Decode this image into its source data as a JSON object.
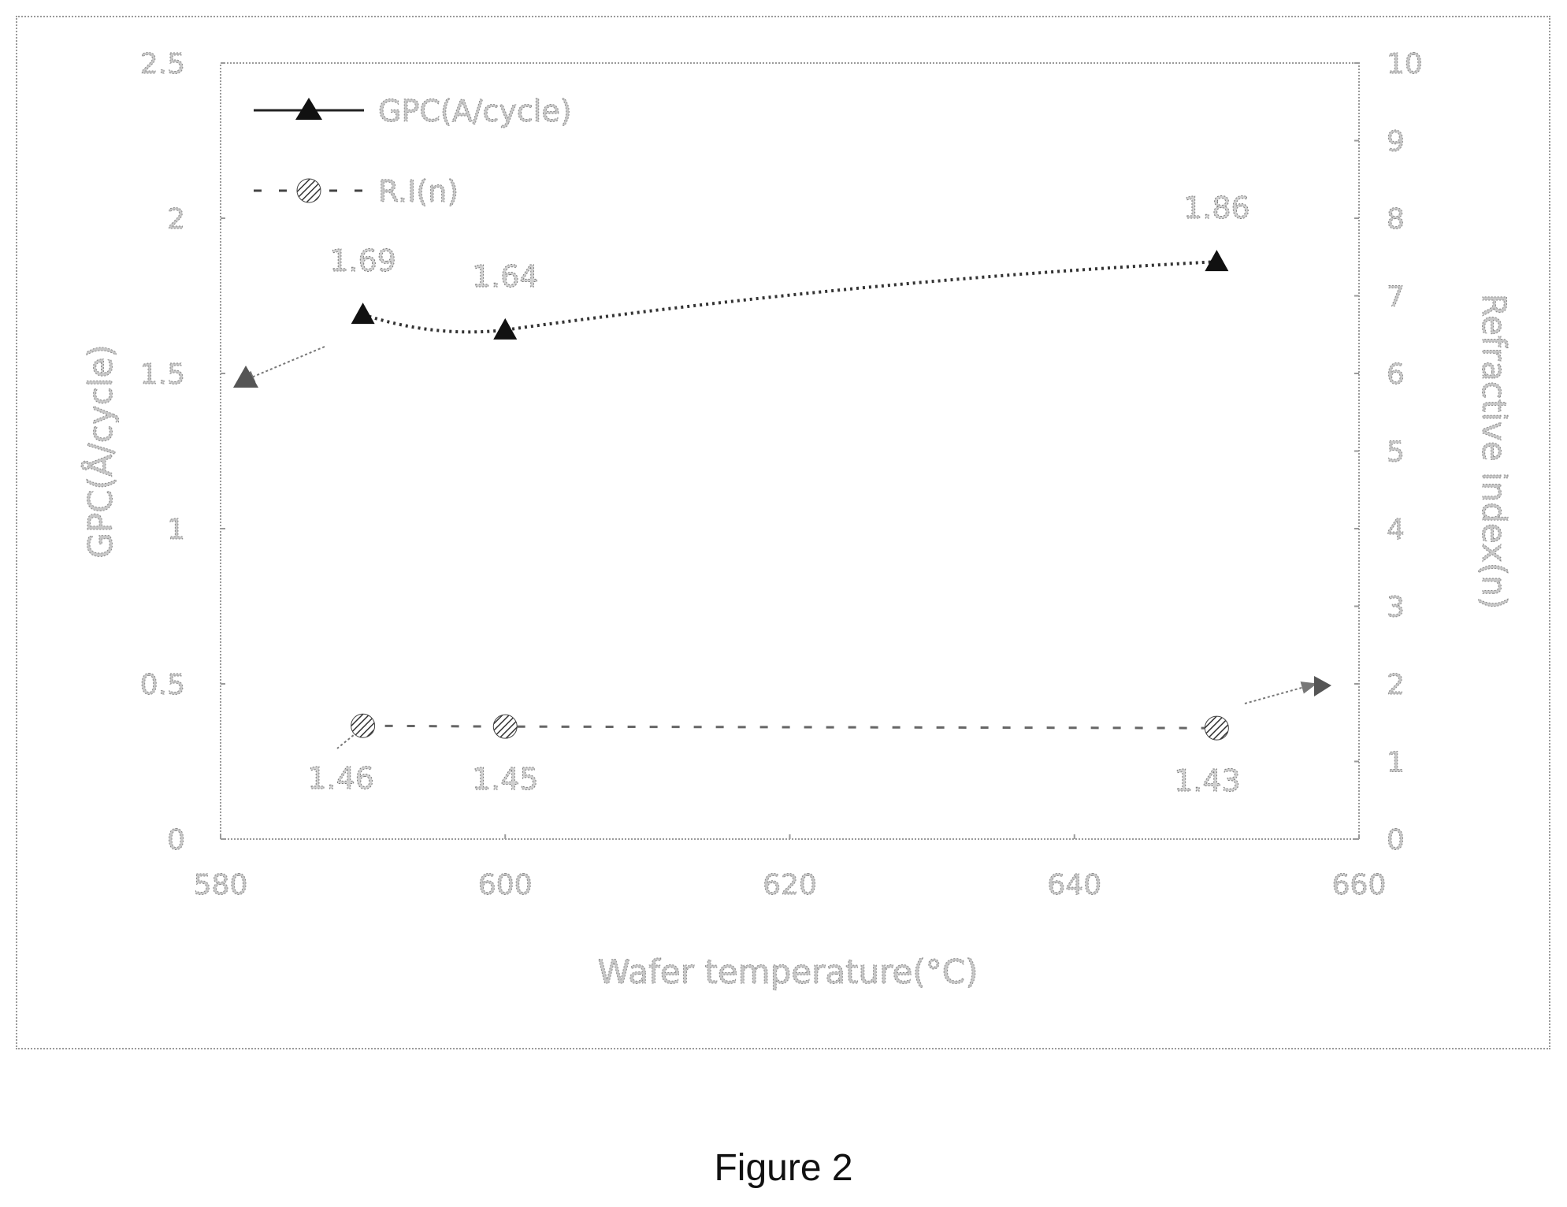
{
  "caption": "Figure 2",
  "chart_data": {
    "type": "line",
    "title": "",
    "xlabel": "Wafer temperature(°C)",
    "ylabel_left": "GPC(Å/cycle)",
    "ylabel_right": "Refractive index(n)",
    "xlim": [
      580,
      660
    ],
    "ylim_left": [
      0,
      2.5
    ],
    "ylim_right": [
      0,
      10
    ],
    "x_ticks": [
      "580",
      "600",
      "620",
      "640",
      "660"
    ],
    "y_left_ticks": [
      "0",
      "0.5",
      "1",
      "1.5",
      "2",
      "2.5"
    ],
    "y_right_ticks": [
      "0",
      "1",
      "2",
      "3",
      "4",
      "5",
      "6",
      "7",
      "8",
      "9",
      "10"
    ],
    "grid": false,
    "legend_position": "top-left",
    "series": [
      {
        "name": "GPC(A/cycle)",
        "axis": "left",
        "marker": "triangle",
        "line_style": "solid",
        "x": [
          590,
          600,
          650
        ],
        "y": [
          1.69,
          1.64,
          1.86
        ],
        "labels": [
          "1.69",
          "1.64",
          "1.86"
        ]
      },
      {
        "name": "R.I(n)",
        "axis": "right",
        "marker": "circle",
        "line_style": "dashed",
        "x": [
          590,
          600,
          650
        ],
        "y": [
          1.46,
          1.45,
          1.43
        ],
        "labels": [
          "1.46",
          "1.45",
          "1.43"
        ]
      }
    ]
  }
}
